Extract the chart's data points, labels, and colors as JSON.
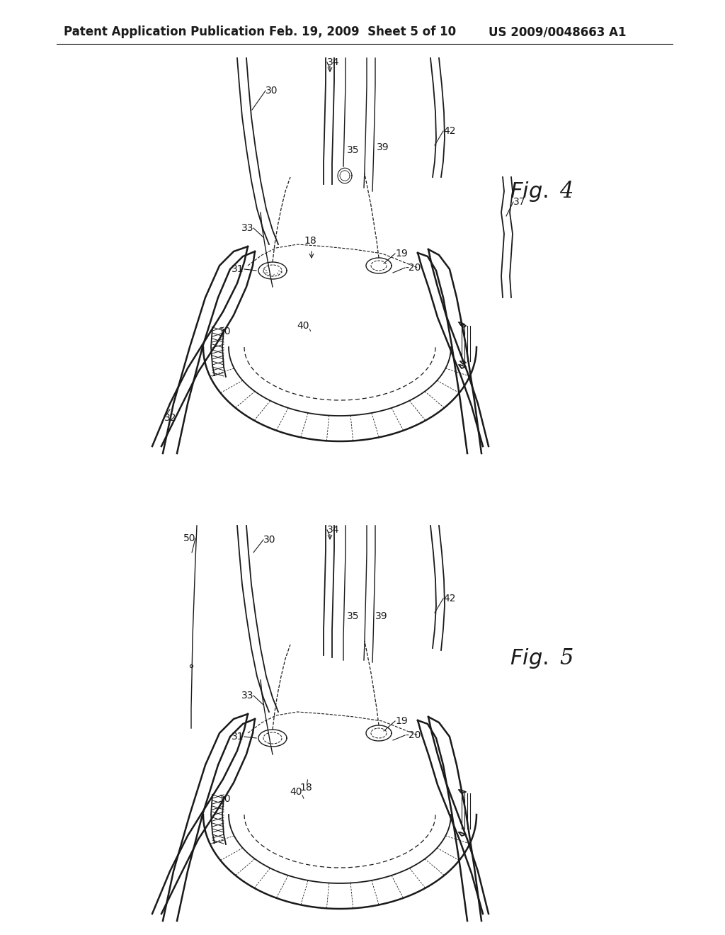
{
  "background_color": "#ffffff",
  "header_text": "Patent Application Publication",
  "header_date": "Feb. 19, 2009  Sheet 5 of 10",
  "header_patent": "US 2009/0048663 A1",
  "header_fontsize": 12,
  "line_color": "#1a1a1a",
  "label_fontsize": 10,
  "fig4_label": "Fig. 4",
  "fig5_label": "Fig. 5"
}
